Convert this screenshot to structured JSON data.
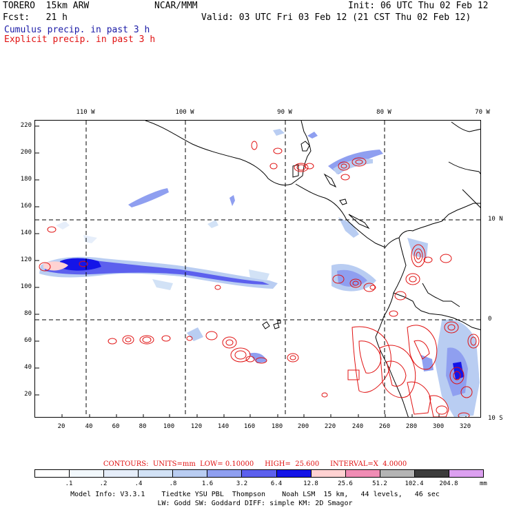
{
  "header": {
    "model": "TORERO  15km ARW",
    "org": "NCAR/MMM",
    "init": "Init: 06 UTC Thu 02 Feb 12",
    "fcst": "Fcst:   21 h",
    "valid": "Valid: 03 UTC Fri 03 Feb 12 (21 CST Thu 02 Feb 12)",
    "legend_cumulus": "Cumulus precip. in past 3 h",
    "legend_explicit": "Explicit precip. in past 3 h"
  },
  "axes": {
    "top": [
      "110 W",
      "100 W",
      "90 W",
      "80 W",
      "70 W"
    ],
    "right": [
      "10 N",
      "0",
      "10 S"
    ],
    "left": [
      "220",
      "200",
      "180",
      "160",
      "140",
      "120",
      "100",
      "80",
      "60",
      "40",
      "20"
    ],
    "bottom": [
      "20",
      "40",
      "60",
      "80",
      "100",
      "120",
      "140",
      "160",
      "180",
      "200",
      "220",
      "240",
      "260",
      "280",
      "300",
      "320"
    ]
  },
  "contour_info": "CONTOURS:  UNITS=mm  LOW= 0.10000     HIGH=  25.600     INTERVAL=X  4.0000",
  "colorbar": {
    "labels": [
      ".1",
      ".2",
      ".4",
      ".8",
      "1.6",
      "3.2",
      "6.4",
      "12.8",
      "25.6",
      "51.2",
      "102.4",
      "204.8"
    ],
    "units": "mm",
    "colors": [
      "#ffffff",
      "#f2f8fc",
      "#e6eefa",
      "#d2e2f6",
      "#b9cdf2",
      "#8f9ff0",
      "#5c60ee",
      "#1414e8",
      "#ffd2d2",
      "#f08cb4",
      "#b4b4b4",
      "#3c3c3c",
      "#dca0f0"
    ]
  },
  "footer": {
    "line1": "Model Info: V3.3.1    Tiedtke YSU PBL  Thompson    Noah LSM  15 km,   44 levels,   46 sec",
    "line2": "LW: Godd SW: Goddard DIFF: simple KM: 2D Smagor"
  }
}
